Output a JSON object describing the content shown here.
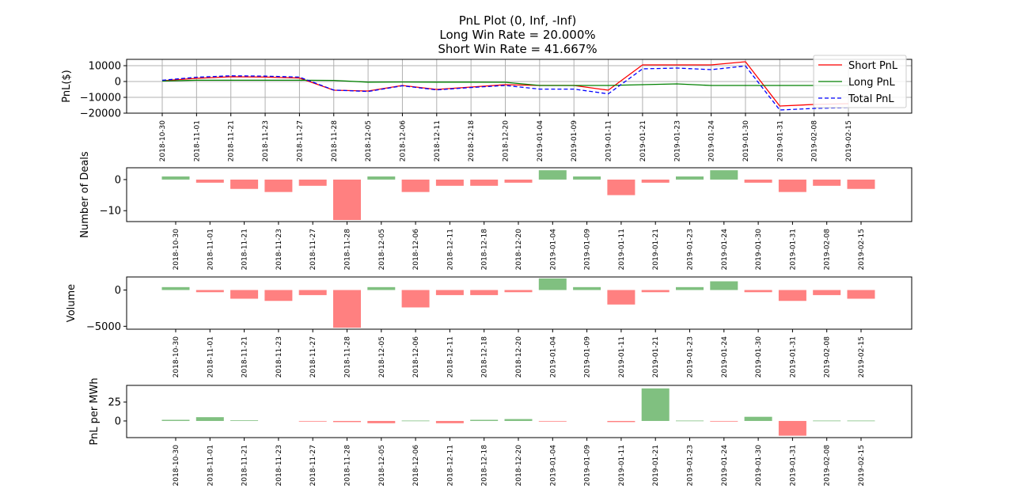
{
  "figure": {
    "title_lines": [
      "PnL Plot (0, Inf, -Inf)",
      "Long Win Rate = 20.000%",
      "Short Win Rate = 41.667%"
    ]
  },
  "colors": {
    "short": "#ff0000",
    "long": "#008000",
    "total": "#0000ff",
    "positive_bar": "#80c080",
    "negative_bar": "#ff8080",
    "grid": "#b0b0b0"
  },
  "chart_data": [
    {
      "type": "line",
      "ylabel": "PnL($)",
      "ylim": [
        -20000,
        14000
      ],
      "yticks": [
        -20000,
        -10000,
        0,
        10000
      ],
      "yticklabels": [
        "−20000",
        "−10000",
        "0",
        "10000"
      ],
      "grid": true,
      "legend_position": "top-right",
      "x": [
        "2018-10-30",
        "2018-11-01",
        "2018-11-21",
        "2018-11-23",
        "2018-11-27",
        "2018-11-28",
        "2018-12-05",
        "2018-12-06",
        "2018-12-11",
        "2018-12-18",
        "2018-12-20",
        "2019-01-04",
        "2019-01-09",
        "2019-01-11",
        "2019-01-21",
        "2019-01-23",
        "2019-01-24",
        "2019-01-30",
        "2019-01-31",
        "2019-02-08",
        "2019-02-15"
      ],
      "series": [
        {
          "name": "Short PnL",
          "style": "solid",
          "color_key": "short",
          "values": [
            500,
            2000,
            3000,
            2800,
            2200,
            -5500,
            -6000,
            -2500,
            -5000,
            -3500,
            -2000,
            -2500,
            -2500,
            -5500,
            10500,
            10500,
            10500,
            12500,
            -15500,
            -14500,
            -14000
          ]
        },
        {
          "name": "Long PnL",
          "style": "solid",
          "color_key": "long",
          "values": [
            300,
            800,
            800,
            800,
            800,
            700,
            -400,
            -300,
            -400,
            -400,
            -500,
            -2500,
            -2500,
            -2500,
            -2000,
            -1500,
            -2500,
            -2500,
            -2500,
            -2500,
            -2500
          ]
        },
        {
          "name": "Total PnL",
          "style": "dashed",
          "color_key": "total",
          "values": [
            800,
            2700,
            3600,
            3400,
            2800,
            -5400,
            -6300,
            -2700,
            -5300,
            -3800,
            -2500,
            -4800,
            -4800,
            -7800,
            8000,
            8500,
            7500,
            9800,
            -18000,
            -17000,
            -16500
          ]
        }
      ]
    },
    {
      "type": "bar",
      "ylabel": "Number of Deals",
      "ylim": [
        -13.5,
        3.8
      ],
      "yticks": [
        -10,
        0
      ],
      "yticklabels": [
        "−10",
        "0"
      ],
      "categories": [
        "2018-10-30",
        "2018-11-01",
        "2018-11-21",
        "2018-11-23",
        "2018-11-27",
        "2018-11-28",
        "2018-12-05",
        "2018-12-06",
        "2018-12-11",
        "2018-12-18",
        "2018-12-20",
        "2019-01-04",
        "2019-01-09",
        "2019-01-11",
        "2019-01-21",
        "2019-01-23",
        "2019-01-24",
        "2019-01-30",
        "2019-01-31",
        "2019-02-08",
        "2019-02-15"
      ],
      "values": [
        1,
        -1,
        -3,
        -4,
        -2,
        -13,
        1,
        -4,
        -2,
        -2,
        -1,
        3,
        1,
        -5,
        -1,
        1,
        3,
        -1,
        -4,
        -2,
        -3
      ]
    },
    {
      "type": "bar",
      "ylabel": "Volume",
      "ylim": [
        -5400,
        1800
      ],
      "yticks": [
        -5000,
        0
      ],
      "yticklabels": [
        "−5000",
        "0"
      ],
      "categories": [
        "2018-10-30",
        "2018-11-01",
        "2018-11-21",
        "2018-11-23",
        "2018-11-27",
        "2018-11-28",
        "2018-12-05",
        "2018-12-06",
        "2018-12-11",
        "2018-12-18",
        "2018-12-20",
        "2019-01-04",
        "2019-01-09",
        "2019-01-11",
        "2019-01-21",
        "2019-01-23",
        "2019-01-24",
        "2019-01-30",
        "2019-01-31",
        "2019-02-08",
        "2019-02-15"
      ],
      "values": [
        400,
        -300,
        -1200,
        -1500,
        -700,
        -5200,
        400,
        -2400,
        -700,
        -700,
        -300,
        1600,
        400,
        -2000,
        -300,
        400,
        1200,
        -300,
        -1500,
        -700,
        -1200
      ]
    },
    {
      "type": "bar",
      "ylabel": "PnL per MWh",
      "ylim": [
        -22,
        47
      ],
      "yticks": [
        0,
        25
      ],
      "yticklabels": [
        "0",
        "25"
      ],
      "categories": [
        "2018-10-30",
        "2018-11-01",
        "2018-11-21",
        "2018-11-23",
        "2018-11-27",
        "2018-11-28",
        "2018-12-05",
        "2018-12-06",
        "2018-12-11",
        "2018-12-18",
        "2018-12-20",
        "2019-01-04",
        "2019-01-09",
        "2019-01-11",
        "2019-01-21",
        "2019-01-23",
        "2019-01-24",
        "2019-01-30",
        "2019-01-31",
        "2019-02-08",
        "2019-02-15"
      ],
      "values": [
        1.5,
        5,
        0.8,
        0,
        -0.5,
        -1.5,
        -3,
        0.5,
        -3,
        1.5,
        2.5,
        -0.5,
        0,
        -1.5,
        43,
        0.5,
        -0.5,
        5.5,
        -19.5,
        0.5,
        0.5
      ]
    }
  ]
}
